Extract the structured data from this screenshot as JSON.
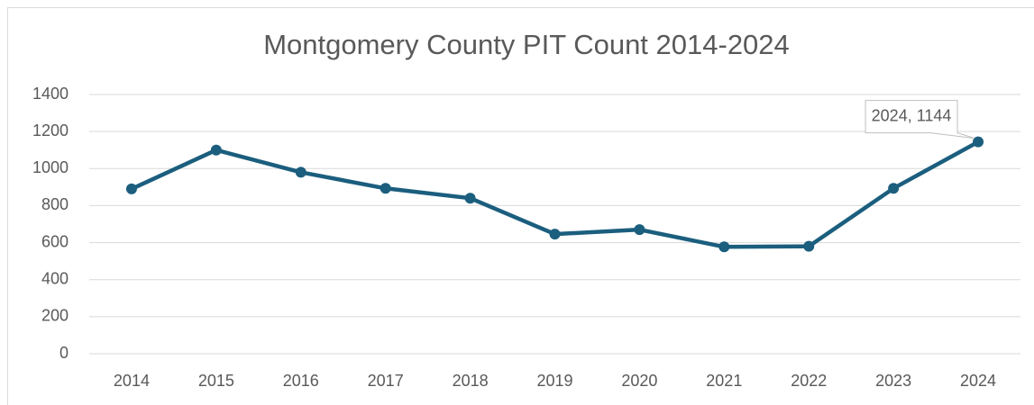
{
  "chart_data": {
    "type": "line",
    "title": "Montgomery County PIT Count 2014-2024",
    "categories": [
      "2014",
      "2015",
      "2016",
      "2017",
      "2018",
      "2019",
      "2020",
      "2021",
      "2022",
      "2023",
      "2024"
    ],
    "series": [
      {
        "name": "PIT Count",
        "color": "#1b5e7e",
        "values": [
          890,
          1100,
          980,
          893,
          840,
          646,
          670,
          577,
          580,
          893,
          1144
        ],
        "value_labels": [
          null,
          null,
          null,
          null,
          null,
          null,
          null,
          null,
          null,
          null,
          "2024, 1144"
        ]
      }
    ],
    "ylim": [
      0,
      1400
    ],
    "yticks": [
      0,
      200,
      400,
      600,
      800,
      1000,
      1200,
      1400
    ],
    "grid": true
  }
}
